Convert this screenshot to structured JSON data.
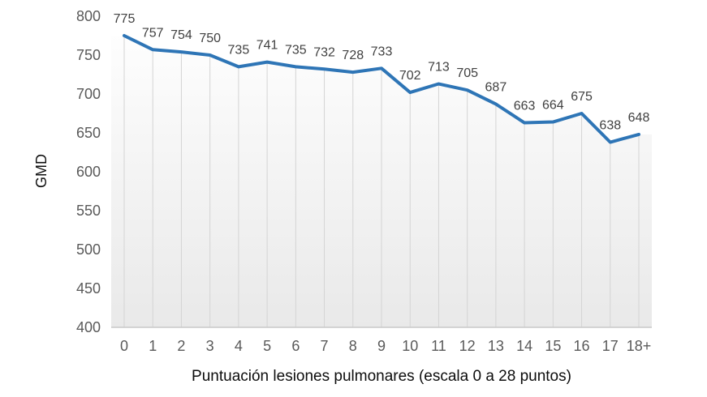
{
  "chart_data": {
    "type": "line",
    "title": "",
    "xlabel": "Puntuación lesiones pulmonares (escala 0 a 28 puntos)",
    "ylabel": "GMD",
    "categories": [
      "0",
      "1",
      "2",
      "3",
      "4",
      "5",
      "6",
      "7",
      "8",
      "9",
      "10",
      "11",
      "12",
      "13",
      "14",
      "15",
      "16",
      "17",
      "18+"
    ],
    "series": [
      {
        "name": "GMD",
        "values": [
          775,
          757,
          754,
          750,
          735,
          741,
          735,
          732,
          728,
          733,
          702,
          713,
          705,
          687,
          663,
          664,
          675,
          638,
          648
        ]
      }
    ],
    "ylim": [
      400,
      800
    ],
    "yticks": [
      400,
      450,
      500,
      550,
      600,
      650,
      700,
      750,
      800
    ],
    "grid": "vertical drop lines from each point to x-axis, no horizontal gridlines",
    "legend": "none",
    "data_labels_visible": true,
    "colors": {
      "line": "#2E75B6",
      "drop_line": "#d4d4d4",
      "axis_line": "#c9c9c9",
      "tick_label": "#595959",
      "data_label": "#404040",
      "axis_title": "#0d0d0d",
      "plot_fill_top": "#ffffff",
      "plot_fill_bottom": "#e9e9e9",
      "background": "#ffffff"
    }
  }
}
